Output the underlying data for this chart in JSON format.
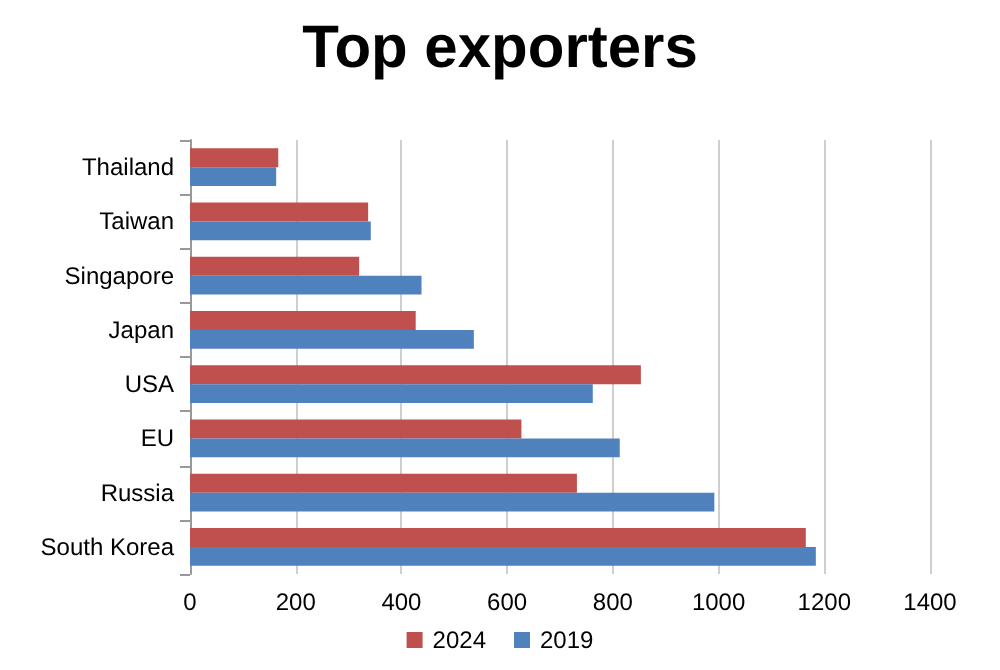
{
  "chart_data": {
    "type": "bar",
    "title": "Top exporters",
    "orientation": "horizontal",
    "categories": [
      "Thailand",
      "Taiwan",
      "Singapore",
      "Japan",
      "USA",
      "EU",
      "Russia",
      "South Korea"
    ],
    "series": [
      {
        "name": "2024",
        "color": "#c0504d",
        "values": [
          167,
          337,
          320,
          427,
          853,
          627,
          732,
          1165
        ]
      },
      {
        "name": "2019",
        "color": "#4f81bd",
        "values": [
          163,
          342,
          438,
          537,
          762,
          813,
          992,
          1184
        ]
      }
    ],
    "xlim": [
      0,
      1400
    ],
    "xticks": [
      0,
      200,
      400,
      600,
      800,
      1000,
      1200,
      1400
    ],
    "grid": "x",
    "legend": "bottom"
  }
}
